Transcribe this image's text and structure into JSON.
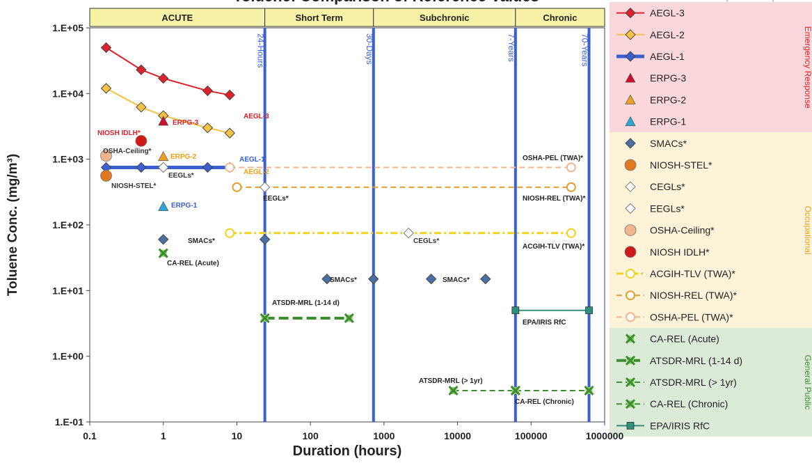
{
  "chart_data": {
    "type": "scatter",
    "title": "Toluene: Comparison of Reference Values",
    "xlabel": "Duration (hours)",
    "ylabel": "Toluene Conc. (mg/m³)",
    "x_scale": "log",
    "y_scale": "log",
    "xlim": [
      0.1,
      1000000
    ],
    "ylim": [
      0.1,
      100000
    ],
    "x_ticks": [
      "0.1",
      "1",
      "10",
      "100",
      "1000",
      "10000",
      "100000",
      "1000000"
    ],
    "y_ticks": [
      "1.E-01",
      "1.E+00",
      "1.E+01",
      "1.E+02",
      "1.E+03",
      "1.E+04",
      "1.E+05"
    ],
    "grid": false,
    "legend_position": "right",
    "periods": [
      {
        "label": "ACUTE",
        "from": 0.1,
        "to": 24
      },
      {
        "label": "Short Term",
        "from": 24,
        "to": 720
      },
      {
        "label": "Subchronic",
        "from": 720,
        "to": 61320
      },
      {
        "label": "Chronic",
        "from": 61320,
        "to": 1000000
      }
    ],
    "vertical_markers": [
      {
        "x": 24,
        "label": "24-Hours"
      },
      {
        "x": 720,
        "label": "30-Days"
      },
      {
        "x": 61320,
        "label": "7-Years"
      },
      {
        "x": 613200,
        "label": "70-Years"
      }
    ],
    "series": [
      {
        "name": "AEGL-3",
        "color": "#e0202a",
        "marker": "diamond",
        "line": "solid",
        "x": [
          0.167,
          0.5,
          1,
          4,
          8
        ],
        "y": [
          50000,
          23000,
          17000,
          11000,
          9500
        ]
      },
      {
        "name": "AEGL-2",
        "color": "#f5c242",
        "marker": "diamond",
        "line": "solid",
        "x": [
          0.167,
          0.5,
          1,
          4,
          8
        ],
        "y": [
          12000,
          6200,
          4600,
          3000,
          2500
        ]
      },
      {
        "name": "AEGL-1",
        "color": "#3a5fd0",
        "marker": "diamond",
        "line": "thick",
        "x": [
          0.167,
          0.5,
          1,
          4,
          8
        ],
        "y": [
          750,
          750,
          750,
          750,
          750
        ]
      },
      {
        "name": "ERPG-3",
        "color": "#c8102e",
        "marker": "triangle",
        "line": "none",
        "x": [
          1
        ],
        "y": [
          3800
        ]
      },
      {
        "name": "ERPG-2",
        "color": "#f0a020",
        "marker": "triangle",
        "line": "none",
        "x": [
          1
        ],
        "y": [
          1100
        ]
      },
      {
        "name": "ERPG-1",
        "color": "#29a8d8",
        "marker": "triangle",
        "line": "none",
        "x": [
          1
        ],
        "y": [
          190
        ]
      },
      {
        "name": "SMACs*",
        "color": "#4a6fa5",
        "marker": "diamond",
        "line": "none",
        "x": [
          1,
          24,
          168,
          720,
          4380,
          24000
        ],
        "y": [
          60,
          60,
          15,
          15,
          15,
          15
        ]
      },
      {
        "name": "NIOSH-STEL*",
        "color": "#e07820",
        "marker": "circle",
        "line": "none",
        "x": [
          0.167
        ],
        "y": [
          560
        ]
      },
      {
        "name": "CEGLs*",
        "color": "#999999",
        "marker": "diamond-open",
        "line": "none",
        "x": [
          2160
        ],
        "y": [
          75
        ]
      },
      {
        "name": "EEGLs*",
        "color": "#999999",
        "marker": "diamond-open",
        "line": "none",
        "x": [
          1,
          24
        ],
        "y": [
          750,
          375
        ]
      },
      {
        "name": "OSHA-Ceiling*",
        "color": "#f2b58c",
        "marker": "circle",
        "line": "none",
        "x": [
          0.167
        ],
        "y": [
          1130
        ]
      },
      {
        "name": "NIOSH IDLH*",
        "color": "#d01a1a",
        "marker": "circle",
        "line": "none",
        "x": [
          0.5
        ],
        "y": [
          1900
        ]
      },
      {
        "name": "ACGIH-TLV (TWA)*",
        "color": "#f2d21c",
        "marker": "circle-open",
        "line": "dashdot",
        "x": [
          8,
          350400
        ],
        "y": [
          75,
          75
        ]
      },
      {
        "name": "NIOSH-REL (TWA)*",
        "color": "#e0a030",
        "marker": "circle-open",
        "line": "dashed",
        "x": [
          10,
          350400
        ],
        "y": [
          375,
          375
        ]
      },
      {
        "name": "OSHA-PEL (TWA)*",
        "color": "#f2b58c",
        "marker": "circle-open",
        "line": "dashed",
        "x": [
          8,
          350400
        ],
        "y": [
          750,
          750
        ]
      },
      {
        "name": "CA-REL (Acute)",
        "color": "#3c8d2f",
        "marker": "x-square",
        "line": "none",
        "x": [
          1
        ],
        "y": [
          37
        ]
      },
      {
        "name": "ATSDR-MRL (1-14 d)",
        "color": "#3c8d2f",
        "marker": "x-square",
        "line": "dashed-thick",
        "x": [
          24,
          336
        ],
        "y": [
          3.8,
          3.8
        ]
      },
      {
        "name": "ATSDR-MRL (> 1yr)",
        "color": "#3c8d2f",
        "marker": "x-square",
        "line": "dashed",
        "x": [
          8760,
          61320
        ],
        "y": [
          0.3,
          0.3
        ]
      },
      {
        "name": "CA-REL (Chronic)",
        "color": "#3c8d2f",
        "marker": "x-square",
        "line": "dashed",
        "x": [
          61320,
          613200
        ],
        "y": [
          0.3,
          0.3
        ]
      },
      {
        "name": "EPA/IRIS RfC",
        "color": "#2f8f7a",
        "marker": "square",
        "line": "solid",
        "x": [
          61320,
          613200
        ],
        "y": [
          5,
          5
        ]
      }
    ],
    "annotations": [
      {
        "text": "AEGL-3",
        "color": "#e0202a"
      },
      {
        "text": "AEGL-2",
        "color": "#f0a020"
      },
      {
        "text": "AEGL-1",
        "color": "#3a5fd0"
      },
      {
        "text": "ERPG-3",
        "color": "#e0202a"
      },
      {
        "text": "ERPG-2",
        "color": "#f0a020"
      },
      {
        "text": "ERPG-1",
        "color": "#3a5fd0"
      },
      {
        "text": "NIOSH IDLH*",
        "color": "#e0202a"
      },
      {
        "text": "OSHA-Ceiling*",
        "color": "#333333"
      },
      {
        "text": "EEGLs*",
        "color": "#333333"
      },
      {
        "text": "NIOSH-STEL*",
        "color": "#333333"
      },
      {
        "text": "SMACs*",
        "color": "#222222"
      },
      {
        "text": "CA-REL (Acute)",
        "color": "#222222"
      },
      {
        "text": "SMACs*",
        "color": "#222222"
      },
      {
        "text": "SMACs*",
        "color": "#222222"
      },
      {
        "text": "ATSDR-MRL (1-14 d)",
        "color": "#222222"
      },
      {
        "text": "CEGLs*",
        "color": "#333333"
      },
      {
        "text": "EEGLs*",
        "color": "#222222"
      },
      {
        "text": "OSHA-PEL (TWA)*",
        "color": "#222222"
      },
      {
        "text": "NIOSH-REL (TWA)*",
        "color": "#222222"
      },
      {
        "text": "ACGIH-TLV (TWA)*",
        "color": "#222222"
      },
      {
        "text": "EPA/IRIS RfC",
        "color": "#222222"
      },
      {
        "text": "ATSDR-MRL (> 1yr)",
        "color": "#222222"
      },
      {
        "text": "CA-REL (Chronic)",
        "color": "#222222"
      }
    ],
    "legend_groups": [
      {
        "name": "Emergency Response",
        "color": "#f9d7da",
        "text_color": "#e0202a",
        "from": "AEGL-3",
        "to": "ERPG-1"
      },
      {
        "name": "Occupational",
        "color": "#fdf3d8",
        "text_color": "#f0a020",
        "from": "SMACs*",
        "to": "OSHA-PEL (TWA)*"
      },
      {
        "name": "General Public",
        "color": "#dcebd8",
        "text_color": "#3c8d2f",
        "from": "CA-REL (Acute)",
        "to": "EPA/IRIS RfC"
      }
    ]
  }
}
